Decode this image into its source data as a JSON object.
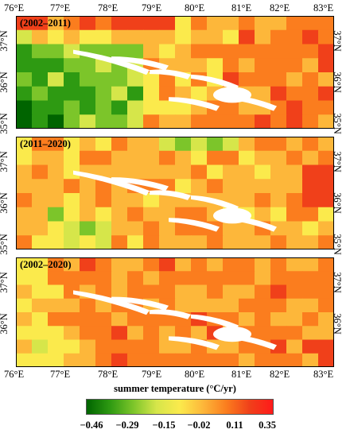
{
  "map": {
    "x_ticks": [
      "76°E",
      "77°E",
      "78°E",
      "79°E",
      "80°E",
      "81°E",
      "82°E",
      "83°E"
    ],
    "panels": [
      {
        "label": "(2002–2011)",
        "y_ticks": [
          "37°N",
          "36°N",
          "35°N"
        ]
      },
      {
        "label": "(2011–2020)",
        "y_ticks": [
          "37°N",
          "36°N",
          "35°N"
        ]
      },
      {
        "label": "(2002–2020)",
        "y_ticks": [
          "37°N",
          "36°N"
        ]
      }
    ],
    "colorbar": {
      "title": "summer temperature (°C/yr)",
      "ticks": [
        "−0.46",
        "−0.29",
        "−0.15",
        "−0.02",
        "0.11",
        "0.35"
      ],
      "colors": [
        "#006400",
        "#2e9a12",
        "#7cc52a",
        "#d6e64a",
        "#fbea4c",
        "#fdb73a",
        "#fb7d1e",
        "#f0401a",
        "#ff1a1a"
      ]
    }
  }
}
